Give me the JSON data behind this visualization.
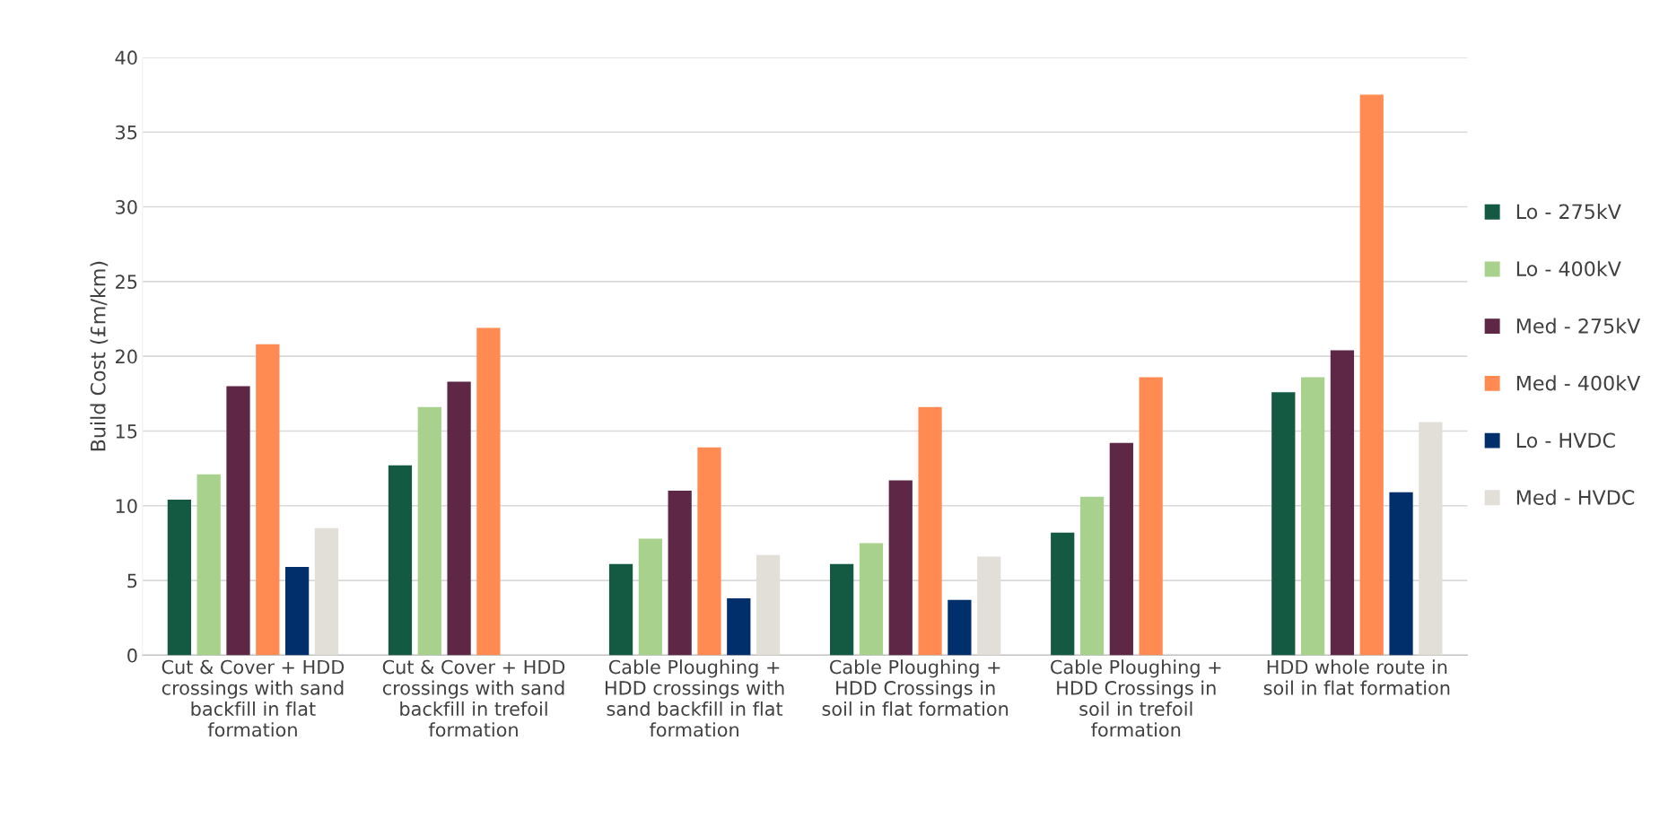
{
  "chart_data": {
    "type": "bar",
    "ylabel": "Build Cost (£m/km)",
    "categories": [
      "Cut & Cover + HDD\ncrossings with sand\nbackfill in flat\nformation",
      "Cut & Cover + HDD\ncrossings with sand\nbackfill in trefoil\nformation",
      "Cable Ploughing +\nHDD crossings with\nsand backfill in flat\nformation",
      "Cable Ploughing +\nHDD Crossings in\nsoil in flat formation",
      "Cable Ploughing +\nHDD Crossings in\nsoil in trefoil\nformation",
      "HDD whole route in\nsoil in flat formation"
    ],
    "series": [
      {
        "name": "Lo - 275kV",
        "color": "#145a42",
        "values": [
          10.4,
          12.7,
          6.1,
          6.1,
          8.2,
          17.6
        ]
      },
      {
        "name": "Lo - 400kV",
        "color": "#a9d18e",
        "values": [
          12.1,
          16.6,
          7.8,
          7.5,
          10.6,
          18.6
        ]
      },
      {
        "name": "Med - 275kV",
        "color": "#5f2746",
        "values": [
          18.0,
          18.3,
          11.0,
          11.7,
          14.2,
          20.4
        ]
      },
      {
        "name": "Med - 400kV",
        "color": "#ff8b52",
        "values": [
          20.8,
          21.9,
          13.9,
          16.6,
          18.6,
          37.5
        ]
      },
      {
        "name": "Lo - HVDC",
        "color": "#002f6c",
        "values": [
          5.9,
          null,
          3.8,
          3.7,
          null,
          10.9
        ]
      },
      {
        "name": "Med - HVDC",
        "color": "#e2dfd8",
        "values": [
          8.5,
          null,
          6.7,
          6.6,
          null,
          15.6
        ]
      }
    ],
    "ylim": [
      0,
      40
    ],
    "yticks": [
      0,
      5,
      10,
      15,
      20,
      25,
      30,
      35,
      40
    ],
    "grid": "y",
    "legend": "right"
  }
}
